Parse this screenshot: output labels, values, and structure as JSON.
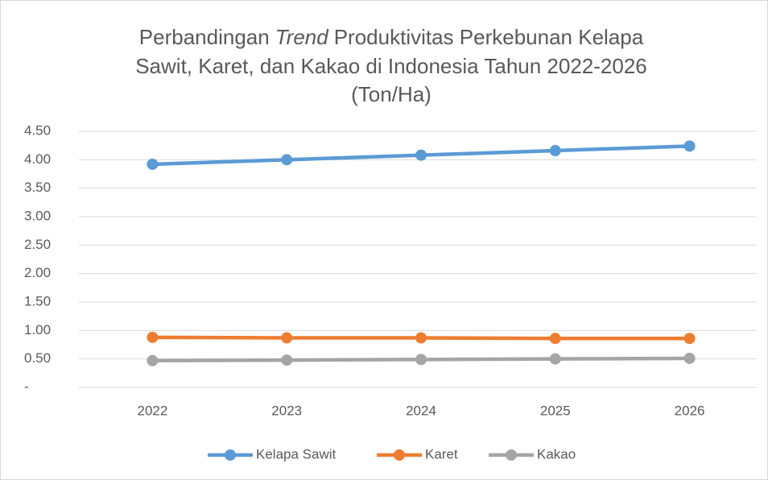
{
  "chart_data": {
    "type": "line",
    "title": [
      "Perbandingan",
      "Trend",
      "Produktivitas Perkebunan Kelapa",
      "Sawit, Karet, dan Kakao di Indonesia Tahun 2022-2026",
      "(Ton/Ha)"
    ],
    "categories": [
      "2022",
      "2023",
      "2024",
      "2025",
      "2026"
    ],
    "series": [
      {
        "name": "Kelapa Sawit",
        "color": "#5b9bd5",
        "values": [
          3.92,
          4.0,
          4.08,
          4.16,
          4.24
        ]
      },
      {
        "name": "Karet",
        "color": "#ed7d31",
        "values": [
          0.88,
          0.87,
          0.87,
          0.86,
          0.86
        ]
      },
      {
        "name": "Kakao",
        "color": "#a5a5a5",
        "values": [
          0.47,
          0.48,
          0.49,
          0.5,
          0.51
        ]
      }
    ],
    "ylim": [
      0,
      4.5
    ],
    "yticks": [
      {
        "value": 0,
        "label": "-"
      },
      {
        "value": 0.5,
        "label": "0.50"
      },
      {
        "value": 1,
        "label": "1.00"
      },
      {
        "value": 1.5,
        "label": "1.50"
      },
      {
        "value": 2,
        "label": "2.00"
      },
      {
        "value": 2.5,
        "label": "2.50"
      },
      {
        "value": 3,
        "label": "3.00"
      },
      {
        "value": 3.5,
        "label": "3.50"
      },
      {
        "value": 4,
        "label": "4.00"
      },
      {
        "value": 4.5,
        "label": "4.50"
      }
    ],
    "grid": true,
    "legend": "bottom"
  }
}
